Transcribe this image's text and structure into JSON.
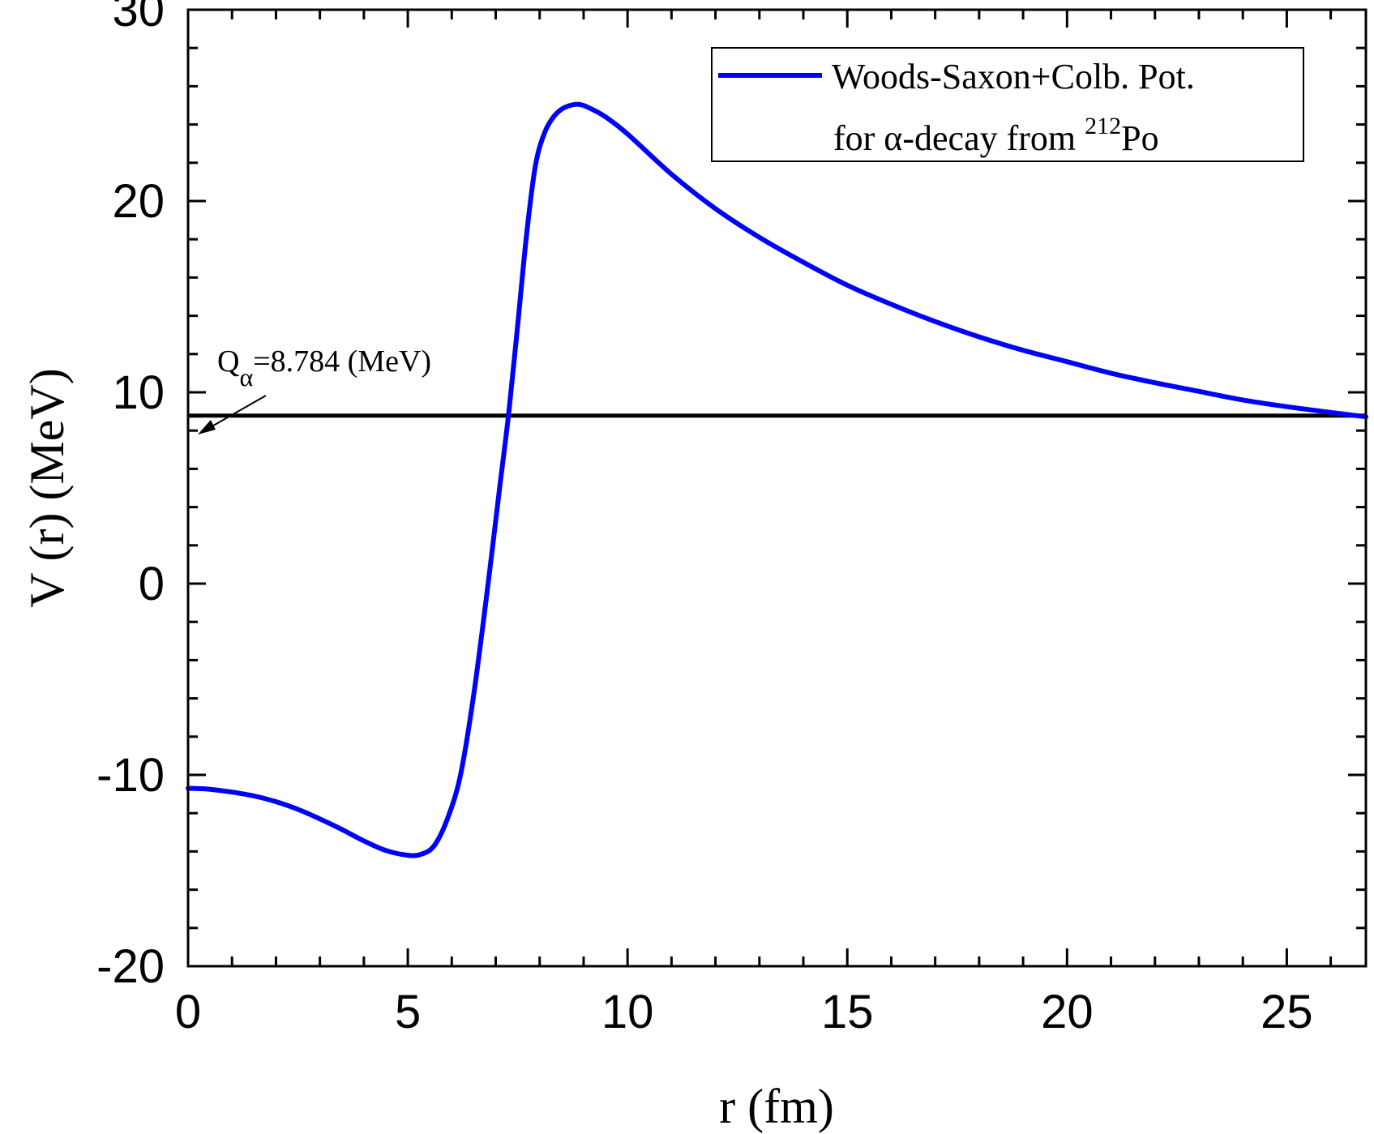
{
  "chart_data": {
    "type": "line",
    "xlabel": "r (fm)",
    "ylabel": "V (r) (MeV)",
    "xlim": [
      0,
      26.8
    ],
    "ylim": [
      -20,
      30
    ],
    "x_ticks": [
      0,
      5,
      10,
      15,
      20,
      25
    ],
    "x_tick_labels": [
      "0",
      "5",
      "10",
      "15",
      "20",
      "25"
    ],
    "y_ticks": [
      -20,
      -10,
      0,
      10,
      20,
      30
    ],
    "y_tick_labels": [
      "-20",
      "-10",
      "0",
      "10",
      "20",
      "30"
    ],
    "grid": false,
    "legend_position": "top-right",
    "legend": {
      "line1": "Woods-Saxon+Colb. Pot.",
      "line2_prefix": "for α-decay from ",
      "line2_sup": "212",
      "line2_suffix": "Po"
    },
    "annotation": {
      "main": "Q",
      "sub": "α",
      "rest": "=8.784 (MeV)"
    },
    "q_value": 8.784,
    "series": [
      {
        "name": "Woods-Saxon+Colb. Pot. for α-decay from 212Po",
        "color": "#0000ff",
        "x": [
          0,
          0.5,
          1,
          1.5,
          2,
          2.5,
          3,
          3.5,
          4,
          4.5,
          5,
          5.3,
          5.6,
          5.9,
          6.2,
          6.5,
          6.8,
          7.1,
          7.3,
          7.5,
          7.7,
          7.9,
          8.1,
          8.3,
          8.5,
          8.7,
          8.9,
          9.1,
          9.5,
          10,
          11,
          12,
          13,
          14,
          15,
          16,
          17,
          18,
          19,
          20,
          21,
          22,
          23,
          24,
          25,
          26,
          26.8
        ],
        "y": [
          -10.7,
          -10.75,
          -10.9,
          -11.1,
          -11.4,
          -11.8,
          -12.3,
          -12.85,
          -13.45,
          -13.95,
          -14.2,
          -14.15,
          -13.7,
          -12.3,
          -10,
          -5.8,
          -0.5,
          5.2,
          9.0,
          13.5,
          18.2,
          21.8,
          23.5,
          24.35,
          24.8,
          25.0,
          25.05,
          24.9,
          24.4,
          23.5,
          21.4,
          19.6,
          18.1,
          16.8,
          15.6,
          14.6,
          13.7,
          12.9,
          12.2,
          11.6,
          11.0,
          10.5,
          10.05,
          9.6,
          9.25,
          8.95,
          8.72
        ]
      }
    ]
  }
}
